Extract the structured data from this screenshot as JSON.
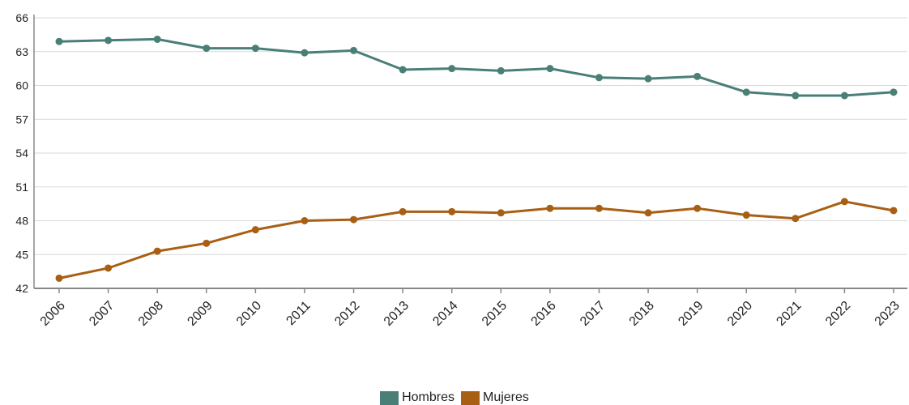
{
  "chart_data": {
    "type": "line",
    "title": "",
    "xlabel": "",
    "ylabel": "",
    "categories": [
      "2006",
      "2007",
      "2008",
      "2009",
      "2010",
      "2011",
      "2012",
      "2013",
      "2014",
      "2015",
      "2016",
      "2017",
      "2018",
      "2019",
      "2020",
      "2021",
      "2022",
      "2023"
    ],
    "ylim": [
      42,
      66
    ],
    "yticks": [
      "42",
      "45",
      "48",
      "51",
      "54",
      "57",
      "60",
      "63",
      "66"
    ],
    "grid": true,
    "legend_position": "bottom-center",
    "series": [
      {
        "name": "Hombres",
        "color": "#4a7f77",
        "values": [
          63.9,
          64.0,
          64.1,
          63.3,
          63.3,
          62.9,
          63.1,
          61.4,
          61.5,
          61.3,
          61.5,
          60.7,
          60.6,
          60.8,
          59.4,
          59.1,
          59.1,
          59.4
        ]
      },
      {
        "name": "Mujeres",
        "color": "#a85f14",
        "values": [
          42.9,
          43.8,
          45.3,
          46.0,
          47.2,
          48.0,
          48.1,
          48.8,
          48.8,
          48.7,
          49.1,
          49.1,
          48.7,
          49.1,
          48.5,
          48.2,
          49.7,
          48.9
        ]
      }
    ]
  }
}
